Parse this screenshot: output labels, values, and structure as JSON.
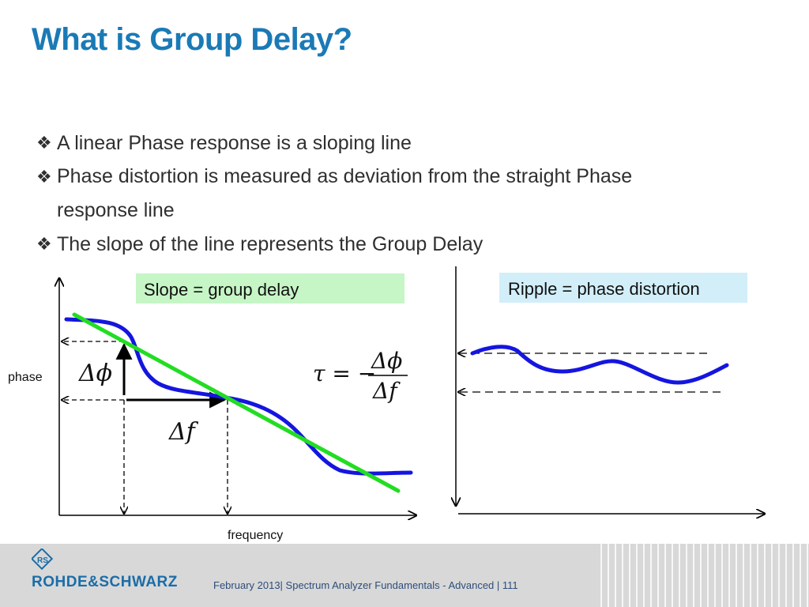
{
  "slide": {
    "title": "What is Group Delay?",
    "bullets": [
      {
        "mark": "❖",
        "text": "A linear Phase response is a sloping line"
      },
      {
        "mark": "❖",
        "text": "Phase distortion is measured as deviation from the straight Phase response line"
      },
      {
        "mark": "❖",
        "text": "The slope of the line represents the Group Delay"
      }
    ]
  },
  "diagram": {
    "left": {
      "label_box": "Slope = group delay",
      "y_axis_label": "phase",
      "x_axis_label": "frequency",
      "delta_phi": "Δϕ",
      "delta_f": "Δf",
      "formula": {
        "lhs": "τ = −",
        "numerator": "Δϕ",
        "denominator": "Δf"
      }
    },
    "right": {
      "label_box": "Ripple = phase distortion"
    },
    "colors": {
      "response_curve": "#1515e0",
      "linear_fit": "#22dd22",
      "slope_box": "#c6f5c6",
      "ripple_box": "#d2eef9",
      "title": "#1a7ab5"
    }
  },
  "footer": {
    "brand": "ROHDE&SCHWARZ",
    "logo_letters": "RS",
    "text": "February 2013| Spectrum Analyzer Fundamentals - Advanced  |  111"
  }
}
